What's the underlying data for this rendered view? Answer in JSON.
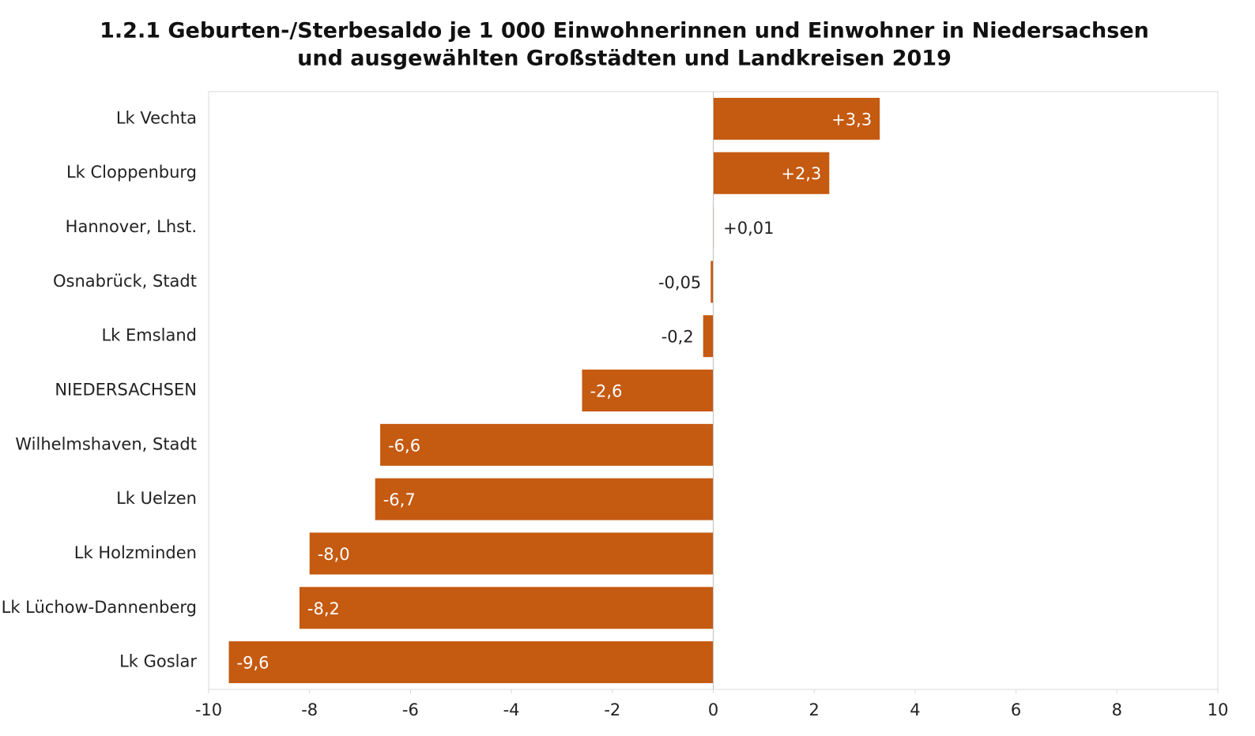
{
  "chart_data": {
    "type": "bar",
    "orientation": "horizontal",
    "title": [
      "1.2.1 Geburten-/Sterbesaldo je 1 000 Einwohnerinnen und Einwohner in Niedersachsen",
      "und ausgewählten Großstädten und Landkreisen 2019"
    ],
    "categories": [
      "Lk Vechta",
      "Lk Cloppenburg",
      "Hannover, Lhst.",
      "Osnabrück, Stadt",
      "Lk Emsland",
      "NIEDERSACHSEN",
      "Wilhelmshaven, Stadt",
      "Lk Uelzen",
      "Lk Holzminden",
      "Lk Lüchow-Dannenberg",
      "Lk Goslar"
    ],
    "values": [
      3.3,
      2.3,
      0.01,
      -0.05,
      -0.2,
      -2.6,
      -6.6,
      -6.7,
      -8.0,
      -8.2,
      -9.6
    ],
    "value_labels": [
      "+3,3",
      "+2,3",
      "+0,01",
      "-0,05",
      "-0,2",
      "-2,6",
      "-6,6",
      "-6,7",
      "-8,0",
      "-8,2",
      "-9,6"
    ],
    "color": "#c55a11",
    "xlim": [
      -10,
      10
    ],
    "xticks": [
      -10,
      -8,
      -6,
      -4,
      -2,
      0,
      2,
      4,
      6,
      8,
      10
    ],
    "grid": false
  }
}
